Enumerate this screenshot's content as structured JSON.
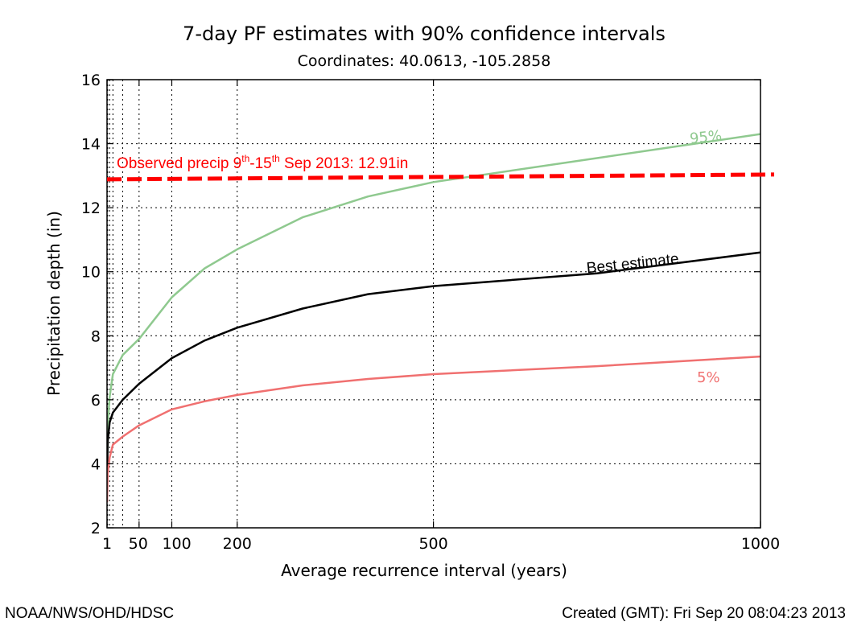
{
  "chart_data": {
    "type": "line",
    "title": "7-day PF estimates with 90% confidence intervals",
    "subtitle": "Coordinates: 40.0613, -105.2858",
    "xlabel": "Average recurrence interval (years)",
    "ylabel": "Precipitation depth (in)",
    "xlim": [
      1,
      1000
    ],
    "ylim": [
      2,
      16
    ],
    "x_ticks": [
      1,
      50,
      100,
      200,
      500,
      1000
    ],
    "y_ticks": [
      2,
      4,
      6,
      8,
      10,
      12,
      14,
      16
    ],
    "grid": true,
    "x": [
      1,
      2,
      5,
      10,
      25,
      50,
      100,
      150,
      200,
      300,
      400,
      500,
      750,
      1000
    ],
    "series": [
      {
        "name": "95%",
        "color": "#8fc98f",
        "values": [
          3.6,
          5.2,
          6.1,
          6.8,
          7.4,
          7.9,
          9.2,
          10.1,
          10.7,
          11.7,
          12.35,
          12.8,
          13.55,
          14.3
        ]
      },
      {
        "name": "Best estimate",
        "color": "#000000",
        "values": [
          3.5,
          4.7,
          5.3,
          5.6,
          6.0,
          6.5,
          7.3,
          7.85,
          8.25,
          8.85,
          9.3,
          9.55,
          9.95,
          10.6
        ]
      },
      {
        "name": "5%",
        "color": "#f07070",
        "values": [
          2.8,
          3.7,
          4.2,
          4.6,
          4.85,
          5.2,
          5.7,
          5.95,
          6.15,
          6.45,
          6.65,
          6.8,
          7.05,
          7.35
        ]
      }
    ],
    "annotation": {
      "text_prefix": "Observed precip 9",
      "sup1": "th",
      "text_mid": "-15",
      "sup2": "th",
      "text_suffix": " Sep 2013: 12.91in",
      "value": 12.91,
      "color": "#ff0000"
    }
  },
  "footer": {
    "left": "NOAA/NWS/OHD/HDSC",
    "right": "Created (GMT): Fri Sep 20 08:04:23 2013"
  }
}
